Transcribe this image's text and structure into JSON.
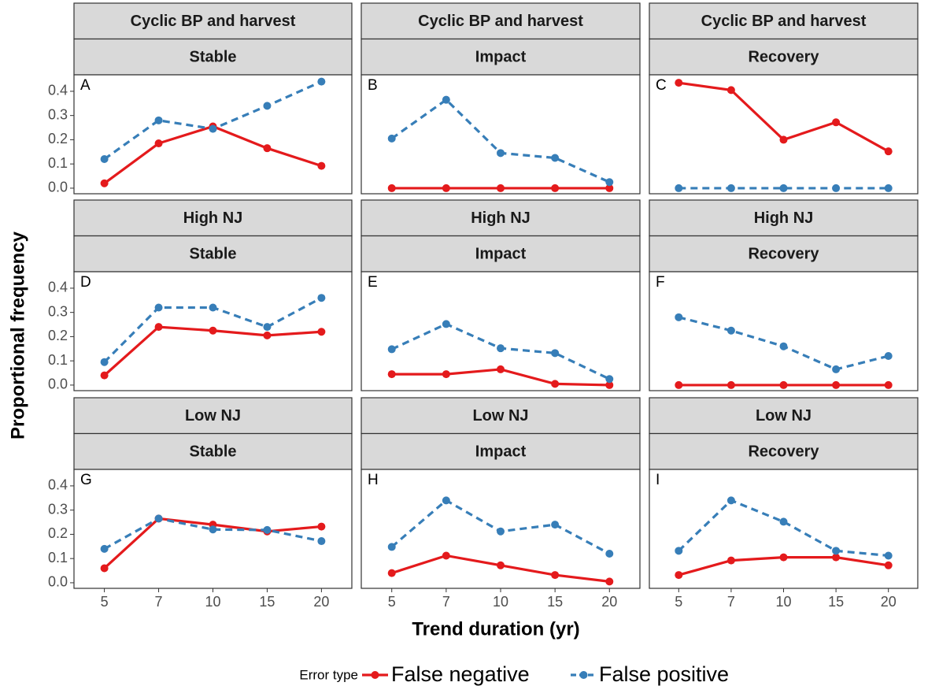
{
  "x_label": "Trend duration (yr)",
  "y_label": "Proportional frequency",
  "legend_title": "Error type",
  "chart_data": [
    {
      "type": "line",
      "title": "Cyclic BP and harvest",
      "subtitle": "Stable",
      "annotation": "A",
      "categories": [
        "5",
        "7",
        "10",
        "15",
        "20"
      ],
      "ylim": [
        -0.023,
        0.468
      ],
      "yticks": [
        {
          "value": 0,
          "label": "0.0"
        },
        0.1,
        0.2,
        0.3,
        0.4
      ],
      "series": [
        {
          "name": "False negative",
          "color": "#e41a1c",
          "line_style": "solid",
          "values": [
            0.02,
            0.185,
            0.255,
            0.165,
            0.092
          ]
        },
        {
          "name": "False positive",
          "color": "#377eb8",
          "line_style": "dashed",
          "values": [
            0.12,
            0.28,
            0.245,
            0.34,
            0.44
          ]
        }
      ]
    },
    {
      "type": "line",
      "title": "Cyclic BP and harvest",
      "subtitle": "Impact",
      "annotation": "B",
      "categories": [
        "5",
        "7",
        "10",
        "15",
        "20"
      ],
      "ylim": [
        -0.023,
        0.468
      ],
      "yticks": [
        {
          "value": 0,
          "label": "0.0"
        },
        0.1,
        0.2,
        0.3,
        0.4
      ],
      "series": [
        {
          "name": "False negative",
          "color": "#e41a1c",
          "line_style": "solid",
          "values": [
            0,
            0,
            0,
            0,
            0
          ]
        },
        {
          "name": "False positive",
          "color": "#377eb8",
          "line_style": "dashed",
          "values": [
            0.205,
            0.365,
            0.145,
            0.125,
            0.025
          ]
        }
      ]
    },
    {
      "type": "line",
      "title": "Cyclic BP and harvest",
      "subtitle": "Recovery",
      "annotation": "C",
      "categories": [
        "5",
        "7",
        "10",
        "15",
        "20"
      ],
      "ylim": [
        -0.023,
        0.468
      ],
      "yticks": [
        {
          "value": 0,
          "label": "0.0"
        },
        0.1,
        0.2,
        0.3,
        0.4
      ],
      "series": [
        {
          "name": "False negative",
          "color": "#e41a1c",
          "line_style": "solid",
          "values": [
            0.435,
            0.405,
            0.2,
            0.272,
            0.152
          ]
        },
        {
          "name": "False positive",
          "color": "#377eb8",
          "line_style": "dashed",
          "values": [
            0,
            0,
            0,
            0,
            0
          ]
        }
      ]
    },
    {
      "type": "line",
      "title": "High NJ",
      "subtitle": "Stable",
      "annotation": "D",
      "categories": [
        "5",
        "7",
        "10",
        "15",
        "20"
      ],
      "ylim": [
        -0.023,
        0.468
      ],
      "yticks": [
        {
          "value": 0,
          "label": "0.0"
        },
        0.1,
        0.2,
        0.3,
        0.4
      ],
      "series": [
        {
          "name": "False negative",
          "color": "#e41a1c",
          "line_style": "solid",
          "values": [
            0.04,
            0.24,
            0.225,
            0.205,
            0.22
          ]
        },
        {
          "name": "False positive",
          "color": "#377eb8",
          "line_style": "dashed",
          "values": [
            0.095,
            0.32,
            0.32,
            0.24,
            0.36
          ]
        }
      ]
    },
    {
      "type": "line",
      "title": "High NJ",
      "subtitle": "Impact",
      "annotation": "E",
      "categories": [
        "5",
        "7",
        "10",
        "15",
        "20"
      ],
      "ylim": [
        -0.023,
        0.468
      ],
      "yticks": [
        {
          "value": 0,
          "label": "0.0"
        },
        0.1,
        0.2,
        0.3,
        0.4
      ],
      "series": [
        {
          "name": "False negative",
          "color": "#e41a1c",
          "line_style": "solid",
          "values": [
            0.045,
            0.045,
            0.065,
            0.005,
            0
          ]
        },
        {
          "name": "False positive",
          "color": "#377eb8",
          "line_style": "dashed",
          "values": [
            0.148,
            0.252,
            0.152,
            0.132,
            0.025
          ]
        }
      ]
    },
    {
      "type": "line",
      "title": "High NJ",
      "subtitle": "Recovery",
      "annotation": "F",
      "categories": [
        "5",
        "7",
        "10",
        "15",
        "20"
      ],
      "ylim": [
        -0.023,
        0.468
      ],
      "yticks": [
        {
          "value": 0,
          "label": "0.0"
        },
        0.1,
        0.2,
        0.3,
        0.4
      ],
      "series": [
        {
          "name": "False negative",
          "color": "#e41a1c",
          "line_style": "solid",
          "values": [
            0,
            0,
            0,
            0,
            0
          ]
        },
        {
          "name": "False positive",
          "color": "#377eb8",
          "line_style": "dashed",
          "values": [
            0.28,
            0.225,
            0.16,
            0.065,
            0.12
          ]
        }
      ]
    },
    {
      "type": "line",
      "title": "Low NJ",
      "subtitle": "Stable",
      "annotation": "G",
      "categories": [
        "5",
        "7",
        "10",
        "15",
        "20"
      ],
      "ylim": [
        -0.023,
        0.468
      ],
      "yticks": [
        {
          "value": 0,
          "label": "0.0"
        },
        0.1,
        0.2,
        0.3,
        0.4
      ],
      "series": [
        {
          "name": "False negative",
          "color": "#e41a1c",
          "line_style": "solid",
          "values": [
            0.06,
            0.265,
            0.24,
            0.212,
            0.232
          ]
        },
        {
          "name": "False positive",
          "color": "#377eb8",
          "line_style": "dashed",
          "values": [
            0.14,
            0.265,
            0.22,
            0.218,
            0.172
          ]
        }
      ]
    },
    {
      "type": "line",
      "title": "Low NJ",
      "subtitle": "Impact",
      "annotation": "H",
      "categories": [
        "5",
        "7",
        "10",
        "15",
        "20"
      ],
      "ylim": [
        -0.023,
        0.468
      ],
      "yticks": [
        {
          "value": 0,
          "label": "0.0"
        },
        0.1,
        0.2,
        0.3,
        0.4
      ],
      "series": [
        {
          "name": "False negative",
          "color": "#e41a1c",
          "line_style": "solid",
          "values": [
            0.04,
            0.112,
            0.072,
            0.032,
            0.005
          ]
        },
        {
          "name": "False positive",
          "color": "#377eb8",
          "line_style": "dashed",
          "values": [
            0.148,
            0.34,
            0.212,
            0.24,
            0.12
          ]
        }
      ]
    },
    {
      "type": "line",
      "title": "Low NJ",
      "subtitle": "Recovery",
      "annotation": "I",
      "categories": [
        "5",
        "7",
        "10",
        "15",
        "20"
      ],
      "ylim": [
        -0.023,
        0.468
      ],
      "yticks": [
        {
          "value": 0,
          "label": "0.0"
        },
        0.1,
        0.2,
        0.3,
        0.4
      ],
      "series": [
        {
          "name": "False negative",
          "color": "#e41a1c",
          "line_style": "solid",
          "values": [
            0.032,
            0.092,
            0.105,
            0.105,
            0.072
          ]
        },
        {
          "name": "False positive",
          "color": "#377eb8",
          "line_style": "dashed",
          "values": [
            0.132,
            0.34,
            0.252,
            0.132,
            0.112
          ]
        }
      ]
    }
  ]
}
